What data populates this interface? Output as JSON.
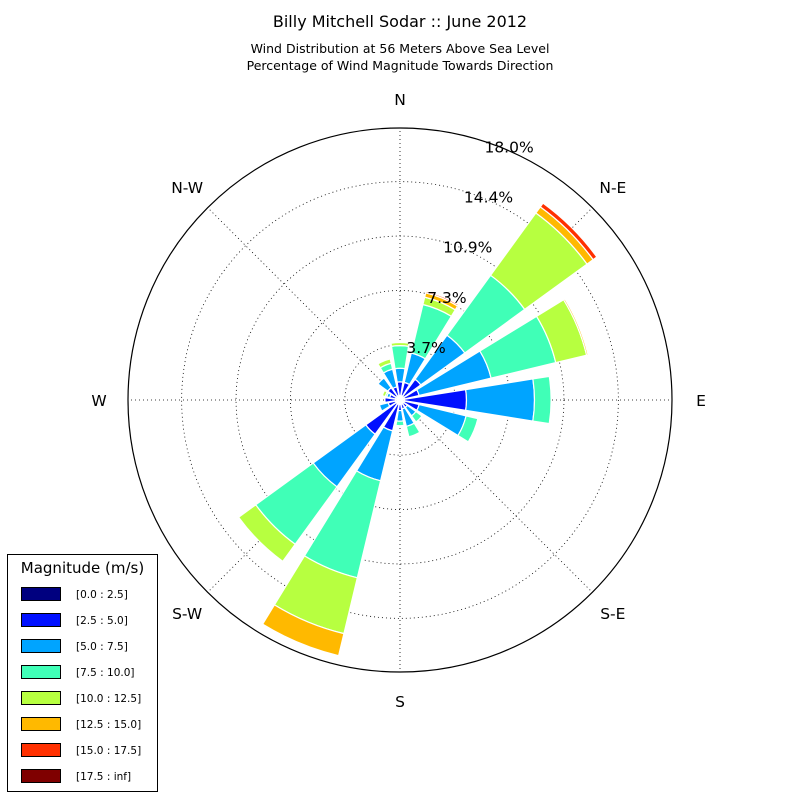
{
  "title": "Billy Mitchell Sodar :: June 2012",
  "subtitle_line1": "Wind Distribution at 56 Meters Above Sea Level",
  "subtitle_line2": "Percentage of Wind Magnitude Towards Direction",
  "chart_data": {
    "type": "windrose",
    "title": "Billy Mitchell Sodar :: June 2012",
    "radial_ticks": [
      "3.7%",
      "7.3%",
      "10.9%",
      "14.4%",
      "18.0%"
    ],
    "radial_tick_values": [
      3.65,
      7.25,
      10.85,
      14.45,
      18.0
    ],
    "rmax": 18.0,
    "direction_labels": [
      "N",
      "N-E",
      "E",
      "S-E",
      "S",
      "S-W",
      "W",
      "N-W"
    ],
    "legend_title": "Magnitude (m/s)",
    "bins": [
      "[0.0 : 2.5]",
      "[2.5 : 5.0]",
      "[5.0 : 7.5]",
      "[7.5 : 10.0]",
      "[10.0 : 12.5]",
      "[12.5 : 15.0]",
      "[15.0 : 17.5]",
      "[17.5 : inf]"
    ],
    "bin_colors": [
      "#00007f",
      "#0010ff",
      "#00a4ff",
      "#40ffb7",
      "#b7ff40",
      "#ffb900",
      "#ff3000",
      "#7f0000"
    ],
    "directions_deg": [
      0,
      22.5,
      45,
      67.5,
      90,
      112.5,
      135,
      157.5,
      180,
      202.5,
      225,
      247.5,
      270,
      292.5,
      315,
      337.5
    ],
    "cumulative_percent": [
      [
        0.3,
        1.2,
        2.1,
        3.6,
        3.8,
        3.8,
        3.8,
        3.8
      ],
      [
        0.3,
        1.2,
        3.2,
        6.5,
        7.0,
        7.3,
        7.4,
        7.4
      ],
      [
        0.3,
        1.7,
        5.3,
        10.2,
        15.3,
        15.8,
        16.1,
        16.1
      ],
      [
        0.3,
        1.3,
        6.2,
        10.6,
        12.7,
        12.8,
        12.8,
        12.8
      ],
      [
        0.3,
        4.4,
        8.9,
        10.0,
        10.0,
        10.0,
        10.0,
        10.0
      ],
      [
        0.3,
        1.3,
        4.5,
        5.3,
        5.3,
        5.3,
        5.3,
        5.3
      ],
      [
        0.3,
        0.6,
        1.3,
        1.8,
        1.8,
        1.8,
        1.8,
        1.8
      ],
      [
        0.3,
        0.6,
        1.8,
        2.5,
        2.5,
        2.5,
        2.5,
        2.5
      ],
      [
        0.3,
        0.7,
        1.4,
        1.7,
        1.7,
        1.7,
        1.7,
        1.7
      ],
      [
        0.3,
        2.1,
        5.5,
        12.1,
        15.9,
        17.4,
        17.4,
        17.4
      ],
      [
        0.3,
        2.8,
        7.1,
        11.8,
        13.2,
        13.2,
        13.2,
        13.2
      ],
      [
        0.3,
        0.8,
        1.4,
        1.4,
        1.4,
        1.4,
        1.4,
        1.4
      ],
      [
        0.3,
        1.0,
        1.0,
        1.0,
        1.0,
        1.0,
        1.0,
        1.0
      ],
      [
        0.3,
        0.7,
        0.9,
        1.0,
        1.2,
        1.2,
        1.2,
        1.2
      ],
      [
        0.3,
        1.0,
        1.8,
        1.8,
        1.8,
        1.8,
        1.8,
        1.8
      ],
      [
        0.3,
        0.9,
        2.1,
        2.5,
        2.8,
        2.8,
        2.8,
        2.8
      ]
    ]
  }
}
